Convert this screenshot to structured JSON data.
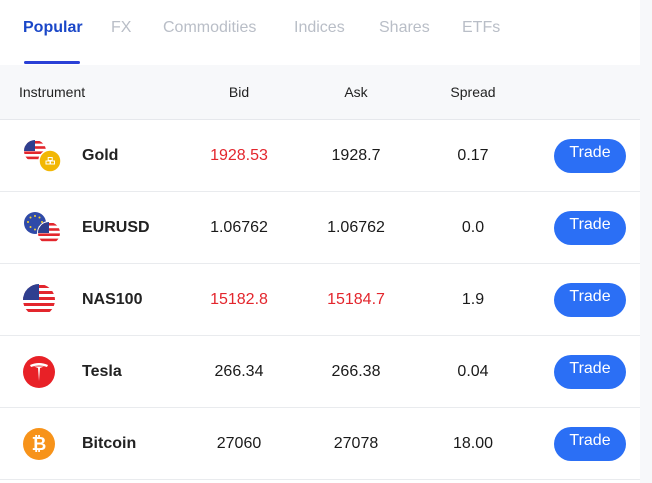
{
  "tabs": [
    "Popular",
    "FX",
    "Commodities",
    "Indices",
    "Shares",
    "ETFs"
  ],
  "columns": {
    "instrument": "Instrument",
    "bid": "Bid",
    "ask": "Ask",
    "spread": "Spread"
  },
  "rows": [
    {
      "name": "Gold",
      "bid": "1928.53",
      "ask": "1928.7",
      "spread": "0.17",
      "bid_red": true,
      "ask_red": false,
      "trade_label": "Trade",
      "icon": "usd-gold-icon"
    },
    {
      "name": "EURUSD",
      "bid": "1.06762",
      "ask": "1.06762",
      "spread": "0.0",
      "bid_red": false,
      "ask_red": false,
      "trade_label": "Trade",
      "icon": "eur-usd-flags-icon"
    },
    {
      "name": "NAS100",
      "bid": "15182.8",
      "ask": "15184.7",
      "spread": "1.9",
      "bid_red": true,
      "ask_red": true,
      "trade_label": "Trade",
      "icon": "us-flag-icon"
    },
    {
      "name": "Tesla",
      "bid": "266.34",
      "ask": "266.38",
      "spread": "0.04",
      "bid_red": false,
      "ask_red": false,
      "trade_label": "Trade",
      "icon": "tesla-logo-icon"
    },
    {
      "name": "Bitcoin",
      "bid": "27060",
      "ask": "27078",
      "spread": "18.00",
      "bid_red": false,
      "ask_red": false,
      "trade_label": "Trade",
      "icon": "bitcoin-icon"
    }
  ],
  "colors": {
    "accent": "#1a47c8",
    "button": "#2b6ff5",
    "negative": "#e3262d",
    "tab_inactive": "#b9bec7"
  }
}
